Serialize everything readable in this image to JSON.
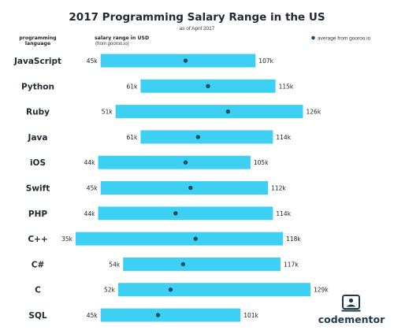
{
  "chart_data": {
    "type": "range-bar",
    "title": "2017 Programming Salary Range in the US",
    "subtitle": "as of April 2017",
    "category_header": [
      "programming",
      "language"
    ],
    "range_header": "salary range in USD",
    "range_subheader": "(from gooroo.io)",
    "legend": {
      "label": "average from gooroo.io",
      "position": "top-right"
    },
    "unit": "k",
    "x_range": [
      30,
      130
    ],
    "series": [
      {
        "name": "JavaScript",
        "min": 45,
        "max": 107,
        "average": 79,
        "min_label": "45k",
        "max_label": "107k"
      },
      {
        "name": "Python",
        "min": 61,
        "max": 115,
        "average": 88,
        "min_label": "61k",
        "max_label": "115k"
      },
      {
        "name": "Ruby",
        "min": 51,
        "max": 126,
        "average": 96,
        "min_label": "51k",
        "max_label": "126k"
      },
      {
        "name": "Java",
        "min": 61,
        "max": 114,
        "average": 84,
        "min_label": "61k",
        "max_label": "114k"
      },
      {
        "name": "iOS",
        "min": 44,
        "max": 105,
        "average": 79,
        "min_label": "44k",
        "max_label": "105k"
      },
      {
        "name": "Swift",
        "min": 45,
        "max": 112,
        "average": 81,
        "min_label": "45k",
        "max_label": "112k"
      },
      {
        "name": "PHP",
        "min": 44,
        "max": 114,
        "average": 75,
        "min_label": "44k",
        "max_label": "114k"
      },
      {
        "name": "C++",
        "min": 35,
        "max": 118,
        "average": 83,
        "min_label": "35k",
        "max_label": "118k"
      },
      {
        "name": "C#",
        "min": 54,
        "max": 117,
        "average": 78,
        "min_label": "54k",
        "max_label": "117k"
      },
      {
        "name": "C",
        "min": 52,
        "max": 129,
        "average": 73,
        "min_label": "52k",
        "max_label": "129k"
      },
      {
        "name": "SQL",
        "min": 45,
        "max": 101,
        "average": 68,
        "min_label": "45k",
        "max_label": "101k"
      }
    ],
    "colors": {
      "bar": "#3dd0f3",
      "average_dot": "#1f4d63",
      "text": "#1f2933"
    }
  },
  "brand": {
    "name": "codementor",
    "icon": "codementor-logo-icon"
  }
}
